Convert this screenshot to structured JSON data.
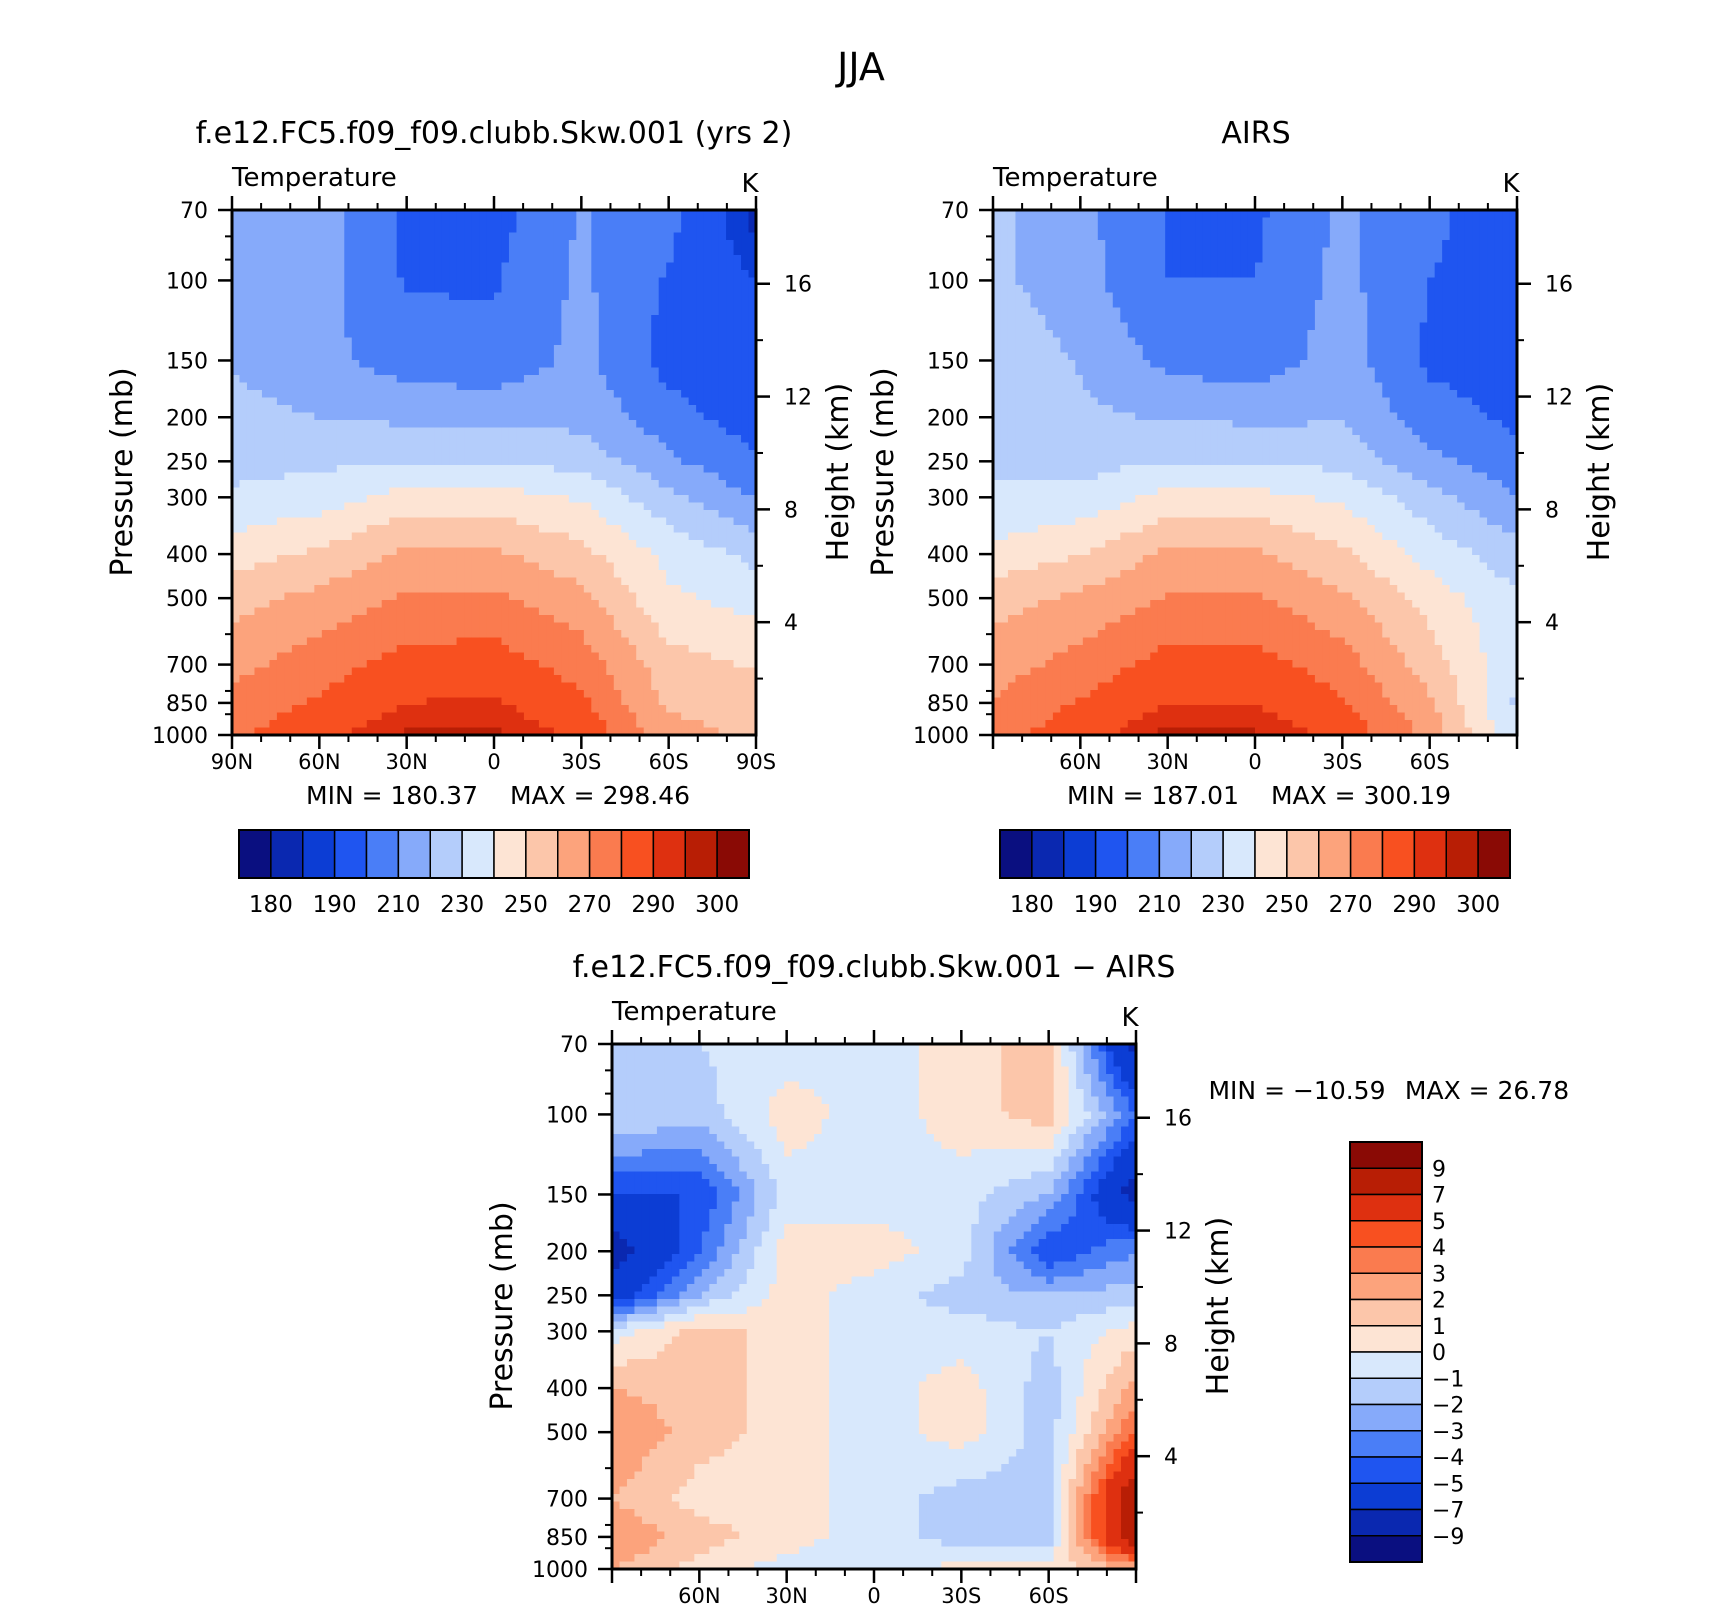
{
  "title": "JJA",
  "panels": [
    {
      "id": "model",
      "title": "f.e12.FC5.f09_f09.clubb.Skw.001 (yrs 2)",
      "variable": "Temperature",
      "units": "K",
      "min_label": "MIN = 180.37",
      "max_label": "MAX = 298.46"
    },
    {
      "id": "obs",
      "title": "AIRS",
      "variable": "Temperature",
      "units": "K",
      "min_label": "MIN = 187.01",
      "max_label": "MAX = 300.19"
    },
    {
      "id": "diff",
      "title": "f.e12.FC5.f09_f09.clubb.Skw.001 − AIRS",
      "variable": "Temperature",
      "units": "K",
      "min_label": "MIN = −10.59",
      "max_label": "MAX =   26.78"
    }
  ],
  "axes": {
    "ylabel": "Pressure (mb)",
    "ylabel_right": "Height (km)",
    "pressure_ticks": [
      70,
      100,
      150,
      200,
      250,
      300,
      400,
      500,
      700,
      850,
      1000
    ],
    "height_ticks": [
      16,
      12,
      8,
      4
    ],
    "lat_ticks_full": [
      "90N",
      "60N",
      "30N",
      "0",
      "30S",
      "60S",
      "90S"
    ],
    "lat_ticks_inner": [
      "60N",
      "30N",
      "0",
      "30S",
      "60S"
    ]
  },
  "colorbars": {
    "absolute": {
      "labels": [
        "180",
        "190",
        "210",
        "230",
        "250",
        "270",
        "290",
        "300"
      ],
      "colors": [
        "#0a0f80",
        "#0a28b0",
        "#0c3dd4",
        "#1f55f0",
        "#4a7ef7",
        "#86aafa",
        "#b4cdfb",
        "#d8e8fc",
        "#fde4d4",
        "#fcc6aa",
        "#fca37c",
        "#fa7b4f",
        "#f85020",
        "#de3010",
        "#b81e05",
        "#8a0a05"
      ]
    },
    "difference": {
      "labels": [
        "9",
        "7",
        "5",
        "4",
        "3",
        "2",
        "1",
        "0",
        "−1",
        "−2",
        "−3",
        "−4",
        "−5",
        "−7",
        "−9"
      ],
      "colors": [
        "#8a0a05",
        "#b81e05",
        "#de3010",
        "#f85020",
        "#fa7b4f",
        "#fca37c",
        "#fcc6aa",
        "#fde4d4",
        "#d8e8fc",
        "#b4cdfb",
        "#86aafa",
        "#4a7ef7",
        "#1f55f0",
        "#0c3dd4",
        "#0a28b0",
        "#0a0f80"
      ]
    }
  },
  "chart_data": [
    {
      "type": "heatmap",
      "title": "f.e12.FC5.f09_f09.clubb.Skw.001 (yrs 2)",
      "subtitle": "Temperature",
      "xlabel": "",
      "ylabel": "Pressure (mb)",
      "units": "K",
      "x": [
        "90N",
        "60N",
        "30N",
        "0",
        "30S",
        "60S",
        "90S"
      ],
      "y": [
        70,
        100,
        150,
        200,
        250,
        300,
        400,
        500,
        700,
        850,
        1000
      ],
      "values": [
        [
          220,
          215,
          198,
          196,
          211,
          203,
          182
        ],
        [
          218,
          214,
          199,
          199,
          212,
          199,
          190
        ],
        [
          219,
          213,
          205,
          203,
          213,
          196,
          193
        ],
        [
          223,
          220,
          218,
          217,
          217,
          204,
          195
        ],
        [
          226,
          228,
          230,
          230,
          226,
          212,
          201
        ],
        [
          232,
          235,
          244,
          244,
          239,
          223,
          209
        ],
        [
          245,
          252,
          262,
          262,
          253,
          237,
          227
        ],
        [
          256,
          263,
          271,
          272,
          263,
          242,
          236
        ],
        [
          266,
          276,
          284,
          285,
          276,
          254,
          249
        ],
        [
          274,
          281,
          290,
          291,
          282,
          258,
          255
        ],
        [
          278,
          287,
          296,
          296,
          288,
          264,
          258
        ]
      ],
      "min": 180.37,
      "max": 298.46
    },
    {
      "type": "heatmap",
      "title": "AIRS",
      "subtitle": "Temperature",
      "xlabel": "",
      "ylabel": "Pressure (mb)",
      "units": "K",
      "x": [
        "90N",
        "60N",
        "30N",
        "0",
        "30S",
        "60S",
        "90S"
      ],
      "y": [
        70,
        100,
        150,
        200,
        250,
        300,
        400,
        500,
        700,
        850,
        1000
      ],
      "values": [
        [
          222,
          213,
          199,
          198,
          212,
          203,
          192
        ],
        [
          222,
          214,
          200,
          200,
          213,
          200,
          194
        ],
        [
          228,
          219,
          207,
          204,
          215,
          198,
          196
        ],
        [
          229,
          222,
          219,
          218,
          219,
          204,
          198
        ],
        [
          229,
          226,
          230,
          230,
          227,
          213,
          203
        ],
        [
          231,
          233,
          243,
          243,
          238,
          224,
          210
        ],
        [
          243,
          250,
          262,
          262,
          252,
          236,
          224
        ],
        [
          256,
          262,
          271,
          271,
          262,
          246,
          231
        ],
        [
          265,
          274,
          284,
          284,
          275,
          255,
          232
        ],
        [
          271,
          281,
          290,
          290,
          281,
          262,
          228
        ],
        [
          276,
          286,
          297,
          296,
          287,
          267,
          232
        ]
      ],
      "min": 187.01,
      "max": 300.19
    },
    {
      "type": "heatmap",
      "title": "f.e12.FC5.f09_f09.clubb.Skw.001 − AIRS",
      "subtitle": "Temperature",
      "xlabel": "",
      "ylabel": "Pressure (mb)",
      "units": "K",
      "x": [
        "90N",
        "60N",
        "30N",
        "0",
        "30S",
        "60S",
        "90S"
      ],
      "y": [
        70,
        100,
        150,
        200,
        250,
        300,
        400,
        500,
        700,
        850,
        1000
      ],
      "values": [
        [
          -2,
          -1,
          -0.5,
          -0.5,
          0.5,
          1.5,
          -8
        ],
        [
          -1,
          -1.5,
          0.5,
          -0.5,
          0.5,
          1.5,
          -4
        ],
        [
          -5,
          -5,
          -0.5,
          -0.5,
          -0.5,
          -2,
          -8
        ],
        [
          -8,
          -4,
          0.5,
          0.5,
          -0.5,
          -5,
          -3
        ],
        [
          -6,
          -2,
          0.5,
          -0.5,
          -1.5,
          -2,
          -1.5
        ],
        [
          -0.5,
          1.5,
          0.5,
          -0.5,
          -0.5,
          -1,
          0.5
        ],
        [
          2,
          1.5,
          0.5,
          -0.5,
          0.5,
          -1.5,
          2.5
        ],
        [
          3,
          1.5,
          0.5,
          -0.5,
          0.5,
          -1.5,
          4
        ],
        [
          2,
          0.5,
          0.5,
          -0.5,
          -1.5,
          -1.5,
          9
        ],
        [
          3,
          1.5,
          0.5,
          -0.5,
          -1.5,
          -1.5,
          9
        ],
        [
          2,
          0.5,
          -0.5,
          -1,
          0.5,
          0.5,
          2
        ]
      ],
      "min": -10.59,
      "max": 26.78
    }
  ]
}
